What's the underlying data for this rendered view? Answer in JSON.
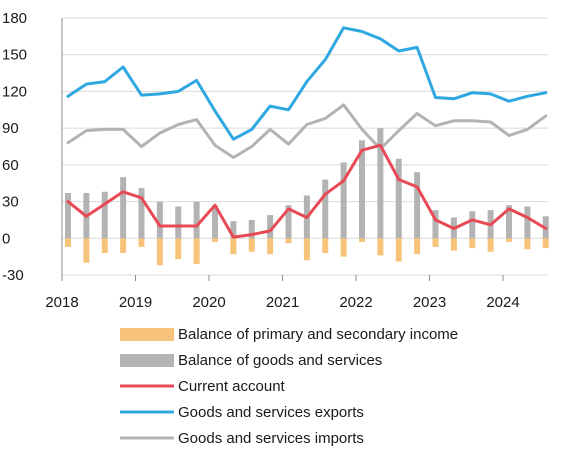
{
  "chart_data": {
    "type": "bar+line",
    "title": "",
    "xlabel": "",
    "ylabel": "",
    "ylim": [
      -30,
      180
    ],
    "y_ticks": [
      -30,
      0,
      30,
      60,
      90,
      120,
      150,
      180
    ],
    "x_tick_labels": [
      "2018",
      "2019",
      "2020",
      "2021",
      "2022",
      "2023",
      "2024"
    ],
    "x_start_year": 2018,
    "periods_per_year": 4,
    "grid": "horizontal",
    "legend_position": "bottom",
    "series": [
      {
        "name": "Balance of primary and secondary income",
        "kind": "bar",
        "color": "#f7c37b",
        "values": [
          -7,
          -20,
          -12,
          -12,
          -7,
          -22,
          -17,
          -21,
          -3,
          -13,
          -11,
          -13,
          -4,
          -18,
          -12,
          -15,
          -3,
          -14,
          -19,
          -13,
          -7,
          -10,
          -8,
          -11,
          -3,
          -9,
          -8
        ]
      },
      {
        "name": "Balance of goods and services",
        "kind": "bar",
        "color": "#b3b3b3",
        "values": [
          37,
          37,
          38,
          50,
          41,
          30,
          26,
          30,
          27,
          14,
          15,
          19,
          27,
          35,
          48,
          62,
          80,
          90,
          65,
          54,
          23,
          17,
          22,
          23,
          27,
          26,
          18
        ]
      },
      {
        "name": "Current account",
        "kind": "line",
        "color": "#e84a55",
        "values": [
          30,
          18,
          28,
          38,
          33,
          10,
          10,
          10,
          27,
          1,
          3,
          6,
          24,
          17,
          36,
          47,
          72,
          76,
          48,
          42,
          15,
          8,
          15,
          11,
          24,
          17,
          8
        ]
      },
      {
        "name": "Goods and services exports",
        "kind": "line",
        "color": "#2fa8e1",
        "values": [
          116,
          126,
          128,
          140,
          117,
          118,
          120,
          129,
          104,
          81,
          89,
          108,
          105,
          128,
          146,
          172,
          169,
          163,
          153,
          156,
          115,
          114,
          119,
          118,
          112,
          116,
          119
        ]
      },
      {
        "name": "Goods and services imports",
        "kind": "line",
        "color": "#b3b3b3",
        "values": [
          78,
          88,
          89,
          89,
          75,
          86,
          93,
          97,
          76,
          66,
          75,
          89,
          77,
          93,
          98,
          109,
          89,
          73,
          88,
          102,
          92,
          96,
          96,
          95,
          84,
          89,
          100
        ]
      }
    ]
  }
}
